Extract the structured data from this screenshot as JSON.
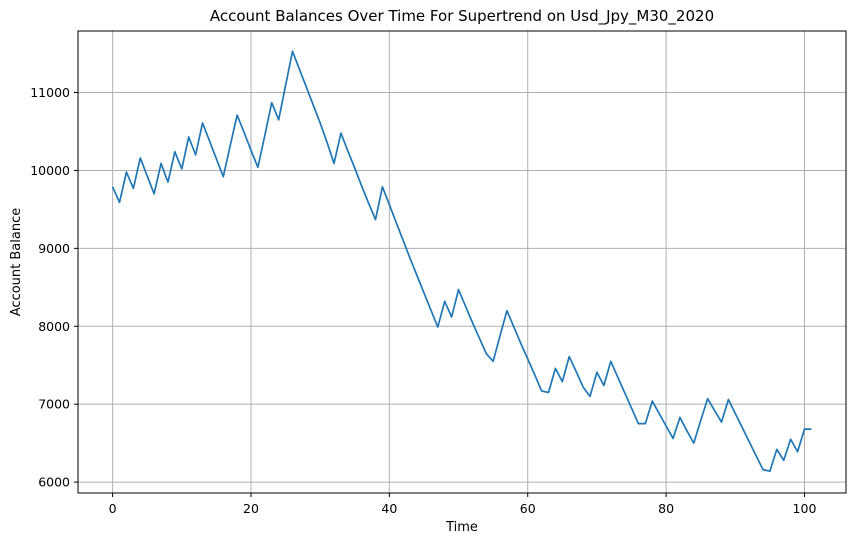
{
  "chart_data": {
    "type": "line",
    "title": "Account Balances Over Time For Supertrend on Usd_Jpy_M30_2020",
    "xlabel": "Time",
    "ylabel": "Account Balance",
    "xlim": [
      -5,
      106
    ],
    "ylim": [
      5860,
      11790
    ],
    "xticks": [
      0,
      20,
      40,
      60,
      80,
      100
    ],
    "yticks": [
      6000,
      7000,
      8000,
      9000,
      10000,
      11000
    ],
    "grid": true,
    "line_color": "#1f77b4",
    "series": [
      {
        "name": "",
        "x": [
          0,
          1,
          2,
          3,
          4,
          5,
          6,
          7,
          8,
          9,
          10,
          11,
          12,
          13,
          14,
          15,
          16,
          17,
          18,
          19,
          20,
          21,
          22,
          23,
          24,
          25,
          26,
          27,
          28,
          29,
          30,
          31,
          32,
          33,
          34,
          35,
          36,
          37,
          38,
          39,
          40,
          41,
          42,
          43,
          44,
          45,
          46,
          47,
          48,
          49,
          50,
          51,
          52,
          53,
          54,
          55,
          56,
          57,
          58,
          59,
          60,
          61,
          62,
          63,
          64,
          65,
          66,
          67,
          68,
          69,
          70,
          71,
          72,
          73,
          74,
          75,
          76,
          77,
          78,
          79,
          80,
          81,
          82,
          83,
          84,
          85,
          86,
          87,
          88,
          89,
          90,
          91,
          92,
          93,
          94,
          95,
          96,
          97,
          98,
          99,
          100,
          101
        ],
        "values": [
          9790,
          9590,
          9980,
          9770,
          10160,
          9930,
          9700,
          10090,
          9850,
          10240,
          10020,
          10430,
          10200,
          10610,
          10380,
          10150,
          9920,
          10320,
          10710,
          10490,
          10260,
          10040,
          10450,
          10870,
          10650,
          11090,
          11530,
          11300,
          11070,
          10840,
          10610,
          10360,
          10090,
          10480,
          10250,
          10030,
          9800,
          9580,
          9370,
          9790,
          9560,
          9330,
          9100,
          8870,
          8650,
          8430,
          8210,
          7990,
          8320,
          8120,
          8470,
          8260,
          8050,
          7850,
          7650,
          7550,
          7880,
          8200,
          7990,
          7780,
          7580,
          7380,
          7170,
          7150,
          7460,
          7290,
          7610,
          7420,
          7220,
          7100,
          7410,
          7240,
          7550,
          7350,
          7150,
          6950,
          6750,
          6750,
          7040,
          6880,
          6720,
          6560,
          6830,
          6660,
          6500,
          6790,
          7070,
          6920,
          6770,
          7060,
          6880,
          6700,
          6520,
          6340,
          6160,
          6140,
          6420,
          6280,
          6550,
          6390,
          6680,
          6680
        ]
      }
    ]
  }
}
